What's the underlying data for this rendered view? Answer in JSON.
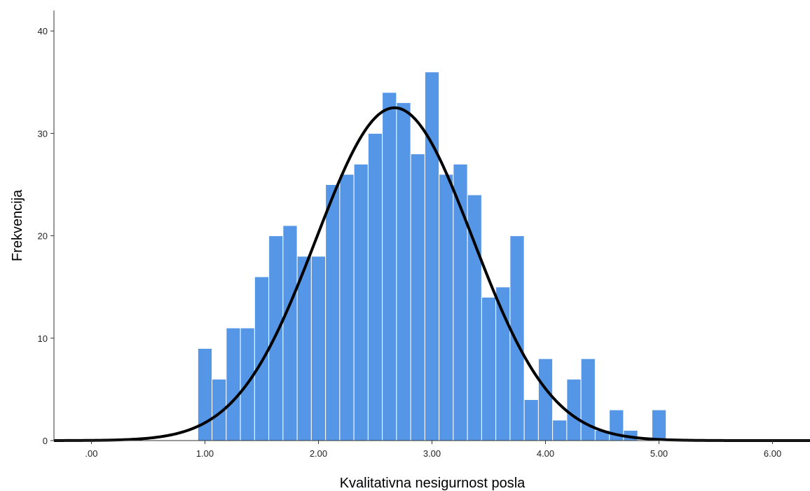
{
  "chart_data": {
    "type": "bar",
    "title": "",
    "xlabel": "Kvalitativna nesigurnost posla",
    "ylabel": "Frekvencija",
    "xlim": [
      -0.33,
      6.33
    ],
    "ylim": [
      0,
      42
    ],
    "x_ticks": [
      0,
      1,
      2,
      3,
      4,
      5,
      6
    ],
    "x_tick_labels": [
      ".00",
      "1.00",
      "2.00",
      "3.00",
      "4.00",
      "5.00",
      "6.00"
    ],
    "y_ticks": [
      0,
      10,
      20,
      30,
      40
    ],
    "y_tick_labels": [
      "0",
      "10",
      "20",
      "30",
      "40"
    ],
    "bin_width": 0.125,
    "bins": [
      {
        "x": 1.0,
        "value": 9
      },
      {
        "x": 1.125,
        "value": 6
      },
      {
        "x": 1.25,
        "value": 11
      },
      {
        "x": 1.375,
        "value": 11
      },
      {
        "x": 1.5,
        "value": 16
      },
      {
        "x": 1.625,
        "value": 20
      },
      {
        "x": 1.75,
        "value": 21
      },
      {
        "x": 1.875,
        "value": 18
      },
      {
        "x": 2.0,
        "value": 18
      },
      {
        "x": 2.125,
        "value": 25
      },
      {
        "x": 2.25,
        "value": 26
      },
      {
        "x": 2.375,
        "value": 27
      },
      {
        "x": 2.5,
        "value": 30
      },
      {
        "x": 2.625,
        "value": 34
      },
      {
        "x": 2.75,
        "value": 33
      },
      {
        "x": 2.875,
        "value": 28
      },
      {
        "x": 3.0,
        "value": 36
      },
      {
        "x": 3.125,
        "value": 26
      },
      {
        "x": 3.25,
        "value": 27
      },
      {
        "x": 3.375,
        "value": 24
      },
      {
        "x": 3.5,
        "value": 14
      },
      {
        "x": 3.625,
        "value": 15
      },
      {
        "x": 3.75,
        "value": 20
      },
      {
        "x": 3.875,
        "value": 4
      },
      {
        "x": 4.0,
        "value": 8
      },
      {
        "x": 4.125,
        "value": 2
      },
      {
        "x": 4.25,
        "value": 6
      },
      {
        "x": 4.375,
        "value": 8
      },
      {
        "x": 4.5,
        "value": 1
      },
      {
        "x": 4.625,
        "value": 3
      },
      {
        "x": 4.75,
        "value": 1
      },
      {
        "x": 5.0,
        "value": 3
      }
    ],
    "normal_curve": {
      "mean": 2.67,
      "sd": 0.69,
      "peak": 32.5
    },
    "grid": false,
    "colors": {
      "bar_fill": "#5596e6",
      "bar_edge": "#ffffff",
      "curve": "#000000",
      "axis": "#333333"
    }
  }
}
